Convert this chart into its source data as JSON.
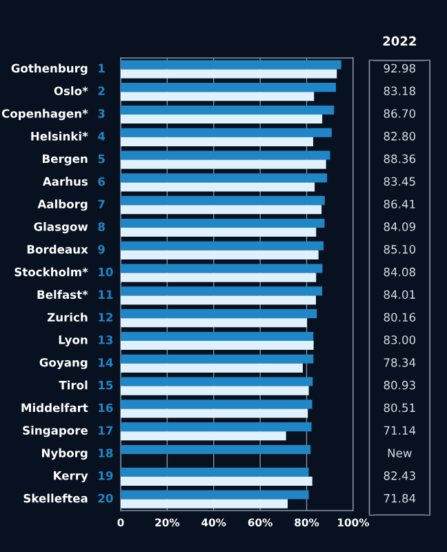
{
  "chart_data": {
    "type": "bar",
    "orientation": "horizontal",
    "categories": [
      "Gothenburg",
      "Oslo*",
      "Copenhagen*",
      "Helsinki*",
      "Bergen",
      "Aarhus",
      "Aalborg",
      "Glasgow",
      "Bordeaux",
      "Stockholm*",
      "Belfast*",
      "Zurich",
      "Lyon",
      "Goyang",
      "Tirol",
      "Middelfart",
      "Singapore",
      "Nyborg",
      "Kerry",
      "Skelleftea"
    ],
    "series": [
      {
        "color": "#1f86c8",
        "values": [
          94.9,
          92.6,
          91.8,
          90.8,
          90.1,
          88.8,
          87.8,
          87.7,
          87.3,
          86.8,
          86.7,
          84.4,
          82.9,
          82.9,
          82.6,
          82.4,
          82.1,
          81.7,
          80.9,
          80.9
        ]
      },
      {
        "name": "2022",
        "color": "#dff1fd",
        "values": [
          92.98,
          83.18,
          86.7,
          82.8,
          88.36,
          83.45,
          86.41,
          84.09,
          85.1,
          84.08,
          84.01,
          80.16,
          83.0,
          78.34,
          80.93,
          80.51,
          71.14,
          null,
          82.43,
          71.84
        ],
        "value_labels": [
          "92.98",
          "83.18",
          "86.70",
          "82.80",
          "88.36",
          "83.45",
          "86.41",
          "84.09",
          "85.10",
          "84.08",
          "84.01",
          "80.16",
          "83.00",
          "78.34",
          "80.93",
          "80.51",
          "71.14",
          "New",
          "82.43",
          "71.84"
        ]
      }
    ],
    "annotations": [
      "1",
      "2",
      "3",
      "4",
      "5",
      "6",
      "7",
      "8",
      "9",
      "10",
      "11",
      "12",
      "13",
      "14",
      "15",
      "16",
      "17",
      "18",
      "19",
      "20"
    ],
    "xlim": [
      0,
      100
    ],
    "xticks": [
      {
        "value": 0,
        "label": "0"
      },
      {
        "value": 20,
        "label": "20%"
      },
      {
        "value": 40,
        "label": "40%"
      },
      {
        "value": 60,
        "label": "60%"
      },
      {
        "value": 80,
        "label": "80%"
      },
      {
        "value": 100,
        "label": "100%"
      }
    ],
    "grid": "x",
    "legend": false
  }
}
